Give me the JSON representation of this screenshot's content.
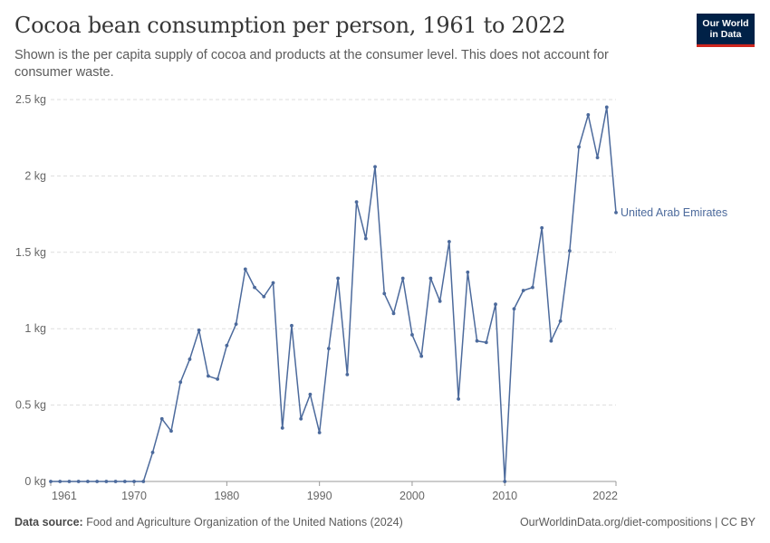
{
  "header": {
    "title": "Cocoa bean consumption per person, 1961 to 2022",
    "subtitle": "Shown is the per capita supply of cocoa and products at the consumer level. This does not account for consumer waste."
  },
  "logo": {
    "line1": "Our World",
    "line2": "in Data"
  },
  "footer": {
    "source_label": "Data source:",
    "source_text": "Food and Agriculture Organization of the United Nations (2024)",
    "url_text": "OurWorldinData.org/diet-compositions | CC BY"
  },
  "colors": {
    "series": "#4c6a9c",
    "grid": "#dddddd",
    "axis": "#999999",
    "logo_bg": "#002147",
    "logo_accent": "#ce261e"
  },
  "chart_data": {
    "type": "line",
    "title": "Cocoa bean consumption per person, 1961 to 2022",
    "xlabel": "",
    "ylabel": "",
    "xlim": [
      1961,
      2022
    ],
    "ylim": [
      0,
      2.5
    ],
    "x_ticks": [
      {
        "value": 1961,
        "label": "1961"
      },
      {
        "value": 1970,
        "label": "1970"
      },
      {
        "value": 1980,
        "label": "1980"
      },
      {
        "value": 1990,
        "label": "1990"
      },
      {
        "value": 2000,
        "label": "2000"
      },
      {
        "value": 2010,
        "label": "2010"
      },
      {
        "value": 2022,
        "label": "2022"
      }
    ],
    "y_ticks": [
      {
        "value": 0,
        "label": "0 kg"
      },
      {
        "value": 0.5,
        "label": "0.5 kg"
      },
      {
        "value": 1,
        "label": "1 kg"
      },
      {
        "value": 1.5,
        "label": "1.5 kg"
      },
      {
        "value": 2,
        "label": "2 kg"
      },
      {
        "value": 2.5,
        "label": "2.5 kg"
      }
    ],
    "grid": "horizontal dashed",
    "series": [
      {
        "name": "United Arab Emirates",
        "color": "#4c6a9c",
        "x": [
          1961,
          1962,
          1963,
          1964,
          1965,
          1966,
          1967,
          1968,
          1969,
          1970,
          1971,
          1972,
          1973,
          1974,
          1975,
          1976,
          1977,
          1978,
          1979,
          1980,
          1981,
          1982,
          1983,
          1984,
          1985,
          1986,
          1987,
          1988,
          1989,
          1990,
          1991,
          1992,
          1993,
          1994,
          1995,
          1996,
          1997,
          1998,
          1999,
          2000,
          2001,
          2002,
          2003,
          2004,
          2005,
          2006,
          2007,
          2008,
          2009,
          2010,
          2011,
          2012,
          2013,
          2014,
          2015,
          2016,
          2017,
          2018,
          2019,
          2020,
          2021,
          2022
        ],
        "values": [
          0,
          0,
          0,
          0,
          0,
          0,
          0,
          0,
          0,
          0,
          0,
          0.19,
          0.41,
          0.33,
          0.65,
          0.8,
          0.99,
          0.69,
          0.67,
          0.89,
          1.03,
          1.39,
          1.27,
          1.21,
          1.3,
          0.35,
          1.02,
          0.41,
          0.57,
          0.32,
          0.87,
          1.33,
          0.7,
          1.83,
          1.59,
          2.06,
          1.23,
          1.1,
          1.33,
          0.96,
          0.82,
          1.33,
          1.18,
          1.57,
          0.54,
          1.37,
          0.92,
          0.91,
          1.16,
          0,
          1.13,
          1.25,
          1.27,
          1.66,
          0.92,
          1.05,
          1.51,
          2.19,
          2.4,
          2.12,
          2.45,
          1.76
        ]
      }
    ]
  }
}
